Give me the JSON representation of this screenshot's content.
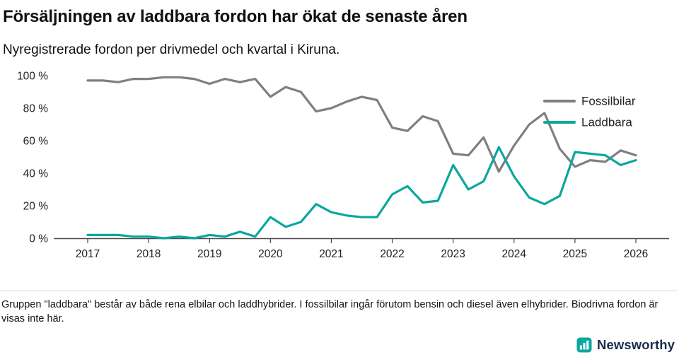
{
  "chart_data": {
    "type": "line",
    "title": "Försäljningen av laddbara fordon har ökat de senaste åren",
    "subtitle": "Nyregistrerade fordon per drivmedel och kvartal i Kiruna.",
    "x_start": "2017 Q1",
    "x_end": "2026 Q1",
    "points_per_year": 4,
    "x_tick_labels": [
      "2017",
      "2018",
      "2019",
      "2020",
      "2021",
      "2022",
      "2023",
      "2024",
      "2025",
      "2026"
    ],
    "y_ticks": [
      {
        "value": 0,
        "label": "0 %"
      },
      {
        "value": 20,
        "label": "20 %"
      },
      {
        "value": 40,
        "label": "40 %"
      },
      {
        "value": 60,
        "label": "60 %"
      },
      {
        "value": 80,
        "label": "80 %"
      },
      {
        "value": 100,
        "label": "100 %"
      }
    ],
    "ylim": [
      0,
      100
    ],
    "grid": false,
    "legend_position": "top-right-inside",
    "series": [
      {
        "name": "Fossilbilar",
        "color": "#7f7f7f",
        "values": [
          97,
          97,
          96,
          98,
          98,
          99,
          99,
          98,
          95,
          98,
          96,
          98,
          87,
          93,
          90,
          78,
          80,
          84,
          87,
          85,
          68,
          66,
          75,
          72,
          52,
          51,
          62,
          41,
          57,
          70,
          77,
          55,
          44,
          48,
          47,
          54,
          51
        ]
      },
      {
        "name": "Laddbara",
        "color": "#0ba79e",
        "values": [
          2,
          2,
          2,
          1,
          1,
          0,
          1,
          0,
          2,
          1,
          4,
          1,
          13,
          7,
          10,
          21,
          16,
          14,
          13,
          13,
          27,
          32,
          22,
          23,
          45,
          30,
          35,
          56,
          38,
          25,
          21,
          26,
          53,
          52,
          51,
          45,
          48
        ]
      }
    ]
  },
  "footnote": {
    "text": "Gruppen \"laddbara\" består av både rena elbilar och laddhybrider. I fossilbilar ingår förutom bensin och diesel även elhybrider. Biodrivna fordon är visas inte här."
  },
  "footer": {
    "brand": "Newsworthy"
  }
}
